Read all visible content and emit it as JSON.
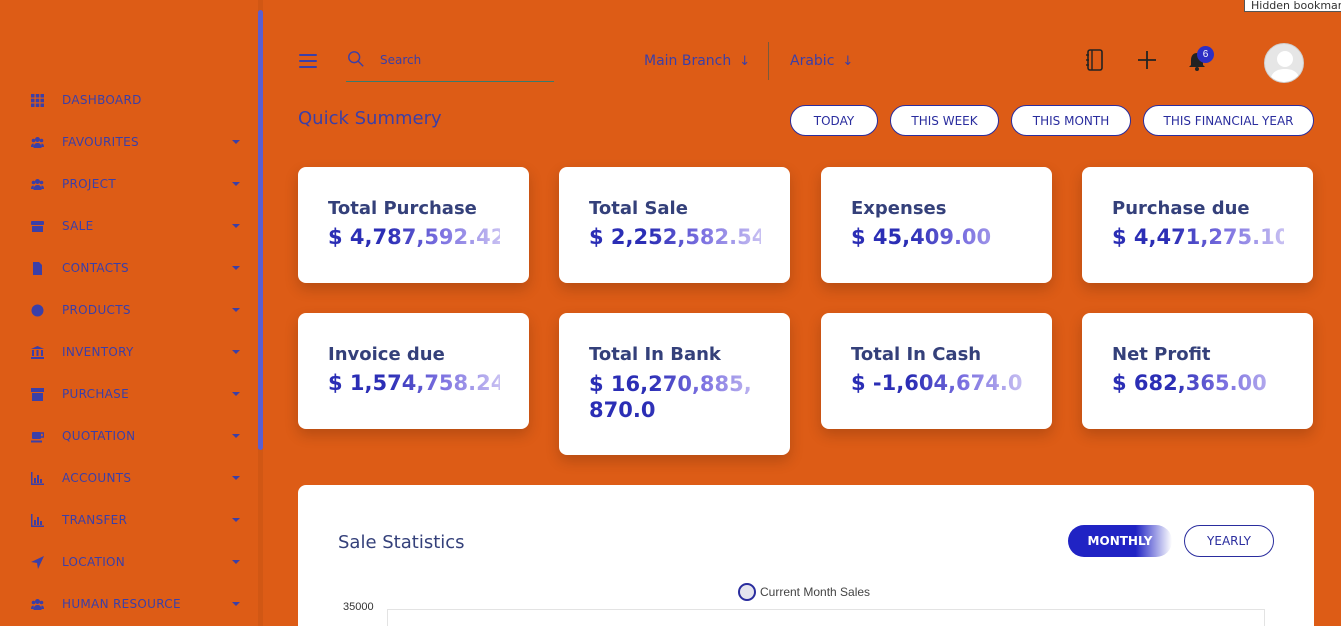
{
  "sidebar": {
    "items": [
      {
        "label": "DASHBOARD",
        "icon": "grid-icon",
        "has_submenu": false
      },
      {
        "label": "FAVOURITES",
        "icon": "users-icon",
        "has_submenu": true
      },
      {
        "label": "PROJECT",
        "icon": "users-icon",
        "has_submenu": true
      },
      {
        "label": "SALE",
        "icon": "store-icon",
        "has_submenu": true
      },
      {
        "label": "CONTACTS",
        "icon": "document-icon",
        "has_submenu": true
      },
      {
        "label": "PRODUCTS",
        "icon": "product-icon",
        "has_submenu": true
      },
      {
        "label": "INVENTORY",
        "icon": "bank-icon",
        "has_submenu": true
      },
      {
        "label": "PURCHASE",
        "icon": "shop-icon",
        "has_submenu": true
      },
      {
        "label": "QUOTATION",
        "icon": "cup-icon",
        "has_submenu": true
      },
      {
        "label": "ACCOUNTS",
        "icon": "chart-icon",
        "has_submenu": true
      },
      {
        "label": "TRANSFER",
        "icon": "chart-icon",
        "has_submenu": true
      },
      {
        "label": "LOCATION",
        "icon": "location-arrow-icon",
        "has_submenu": true
      },
      {
        "label": "HUMAN RESOURCE",
        "icon": "users-icon",
        "has_submenu": true
      }
    ]
  },
  "header": {
    "search_placeholder": "Search",
    "branch": "Main Branch",
    "language": "Arabic",
    "notification_count": "6",
    "tooltip": "Hidden bookmar"
  },
  "summary": {
    "title": "Quick Summery",
    "periods": [
      "TODAY",
      "THIS WEEK",
      "THIS MONTH",
      "THIS FINANCIAL YEAR"
    ],
    "cards": [
      {
        "title": "Total Purchase",
        "value": "$ 4,787,592.42"
      },
      {
        "title": "Total Sale",
        "value": "$ 2,252,582.54"
      },
      {
        "title": "Expenses",
        "value": "$ 45,409.00"
      },
      {
        "title": "Purchase due",
        "value": "$ 4,471,275.10"
      },
      {
        "title": "Invoice due",
        "value": "$ 1,574,758.24"
      },
      {
        "title": "Total In Bank",
        "value": "$ 16,270,885,870.0"
      },
      {
        "title": "Total In Cash",
        "value": "$ -1,604,674.00"
      },
      {
        "title": "Net Profit",
        "value": "$ 682,365.00"
      }
    ]
  },
  "statistics": {
    "title": "Sale Statistics",
    "toggle_monthly": "MONTHLY",
    "toggle_yearly": "YEARLY",
    "legend": "Current Month Sales",
    "ytick_top": "35000"
  },
  "colors": {
    "background": "#dd5c16",
    "accent": "#3b3fa8",
    "primary_button": "#2023c4"
  }
}
